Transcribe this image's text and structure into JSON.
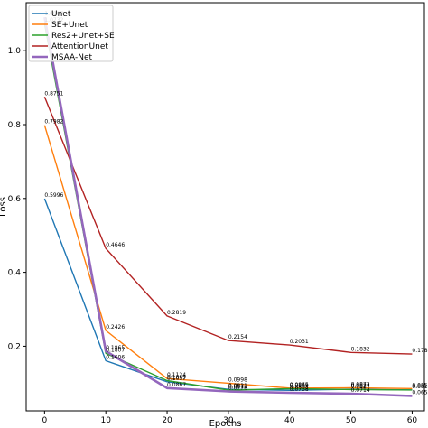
{
  "chart_data": {
    "type": "line",
    "title": "",
    "xlabel": "Epochs",
    "ylabel": "Loss",
    "xlim": [
      -3,
      62
    ],
    "ylim": [
      0.025,
      1.13
    ],
    "xticks": [
      0,
      10,
      20,
      30,
      40,
      50,
      60
    ],
    "yticks": [
      0.2,
      0.4,
      0.6,
      0.8,
      1.0
    ],
    "ytick_labels": [
      "0.2",
      "0.4",
      "0.6",
      "0.8",
      "1.0"
    ],
    "grid": false,
    "legend_position": "top-left",
    "x": [
      0,
      10,
      20,
      30,
      40,
      50,
      60
    ],
    "series": [
      {
        "name": "Unet",
        "color": "#1f77b4",
        "values": [
          0.5996,
          0.1606,
          0.1037,
          0.0831,
          0.0805,
          0.0834,
          0.0816
        ],
        "labels": [
          "0.5996",
          "0.1606",
          "0.1037",
          "0.0831",
          "0.0805",
          "0.0834",
          "0.0816"
        ]
      },
      {
        "name": "SE+Unet",
        "color": "#ff7f0e",
        "values": [
          0.7982,
          0.2426,
          0.1124,
          0.0998,
          0.0865,
          0.0873,
          0.0854
        ],
        "labels": [
          "0.7982",
          "0.2426",
          "0.1124",
          "0.0998",
          "0.0865",
          "0.0873",
          "0.0854"
        ]
      },
      {
        "name": "Res2+Unet+SE",
        "color": "#2ca02c",
        "values": [
          1.0732,
          0.1807,
          0.1069,
          0.0811,
          0.0849,
          0.0827,
          0.0814
        ],
        "labels": [
          "1.0732",
          "0.1807",
          "0.1069",
          "0.0811",
          "0.0849",
          "0.0827",
          "0.0814"
        ]
      },
      {
        "name": "AttentionUnet",
        "color": "#b22222",
        "values": [
          0.8751,
          0.4646,
          0.2819,
          0.2154,
          0.2031,
          0.1832,
          0.1787
        ],
        "labels": [
          "0.8751",
          "0.4646",
          "0.2819",
          "0.2154",
          "0.2031",
          "0.1832",
          "0.1787"
        ]
      },
      {
        "name": "MSAA-Net",
        "color": "#9467bd",
        "values": [
          1.0907,
          0.1865,
          0.0867,
          0.0776,
          0.0738,
          0.0714,
          0.0654
        ],
        "labels": [
          "1.0907",
          "0.1865",
          "0.0867",
          "0.0776",
          "0.0738",
          "0.0714",
          "0.0654"
        ]
      }
    ]
  }
}
